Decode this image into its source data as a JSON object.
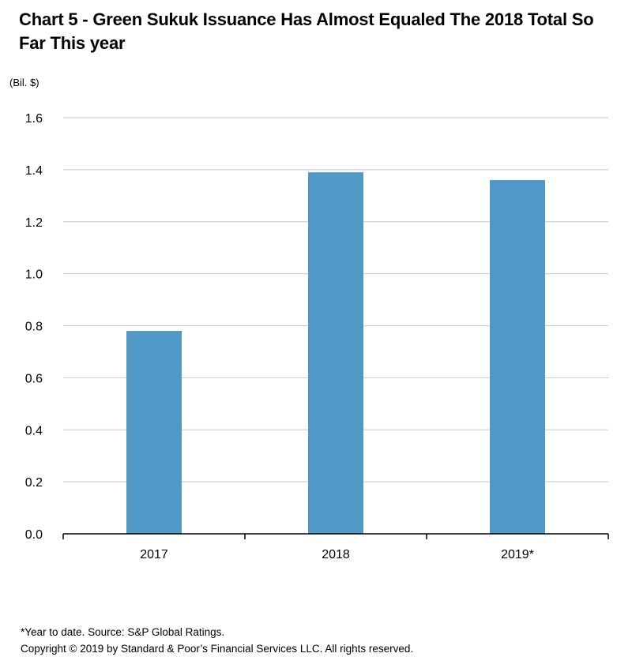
{
  "title": "Chart 5 - Green Sukuk Issuance Has Almost Equaled The 2018 Total So Far This year",
  "unit_label": "(Bil. $)",
  "footnote": {
    "line1": "*Year to date. Source: S&P Global Ratings.",
    "line2": "Copyright © 2019 by Standard & Poor’s Financial Services LLC. All rights reserved."
  },
  "chart_data": {
    "type": "bar",
    "title": "Chart 5 - Green Sukuk Issuance Has Almost Equaled The 2018 Total So Far This year",
    "ylabel": "(Bil. $)",
    "xlabel": "",
    "categories": [
      "2017",
      "2018",
      "2019*"
    ],
    "values": [
      0.78,
      1.39,
      1.36
    ],
    "ylim": [
      0,
      1.6
    ],
    "yticks": [
      0.0,
      0.2,
      0.4,
      0.6,
      0.8,
      1.0,
      1.2,
      1.4,
      1.6
    ],
    "ytick_labels": [
      "0.0",
      "0.2",
      "0.4",
      "0.6",
      "0.8",
      "1.0",
      "1.2",
      "1.4",
      "1.6"
    ],
    "grid": true,
    "bar_color": "#5099c6",
    "grid_color": "#c8c8c8"
  }
}
